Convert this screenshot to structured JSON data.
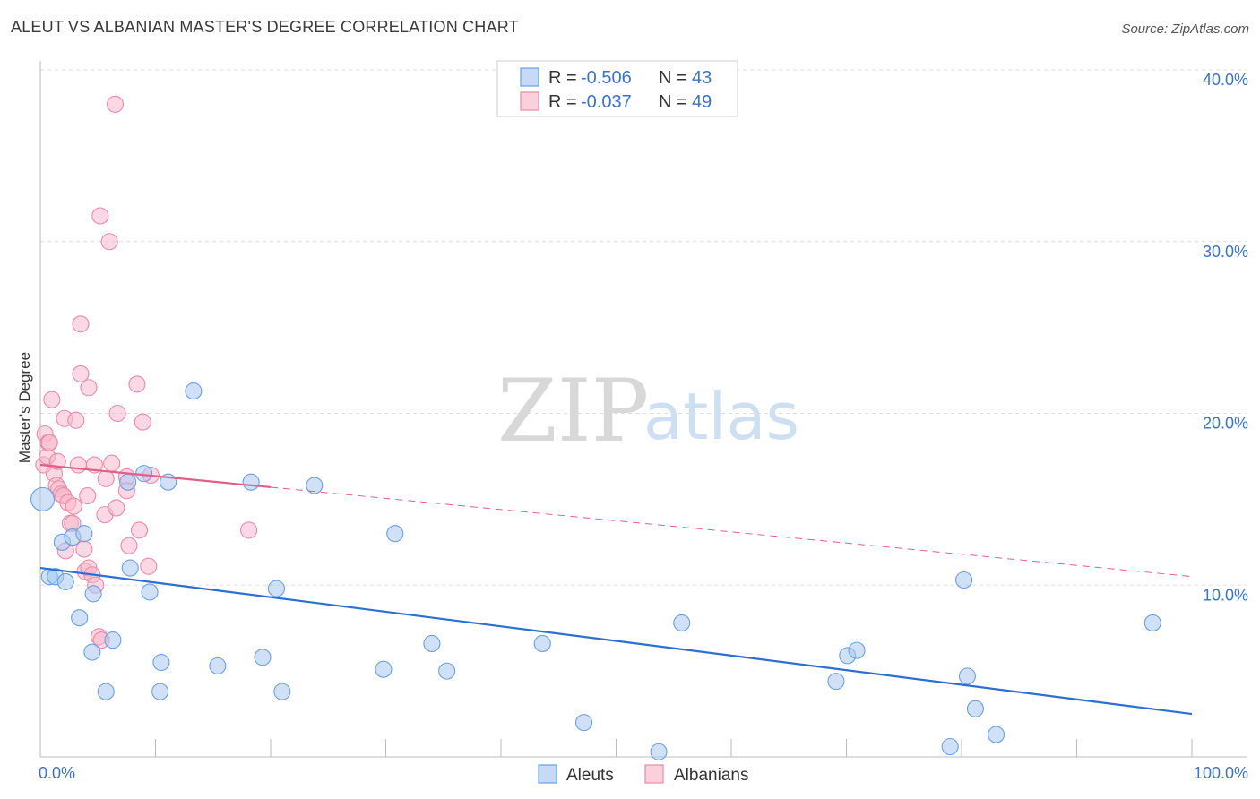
{
  "title": "ALEUT VS ALBANIAN MASTER'S DEGREE CORRELATION CHART",
  "source": "Source: ZipAtlas.com",
  "watermark": {
    "zip": "ZIP",
    "atlas": "atlas"
  },
  "colors": {
    "aleut_fill": "#a9c8f0",
    "aleut_stroke": "#6a9fe0",
    "aleut_line": "#2a6fd1",
    "albanian_fill": "#f7b8cc",
    "albanian_stroke": "#e98aa8",
    "albanian_line": "#e0608a",
    "tick_text": "#3b73c4",
    "grid": "#dddddd"
  },
  "legend": {
    "rows": [
      {
        "r_label": "R = ",
        "r_value": "-0.506",
        "n_label": "N = ",
        "n_value": "43"
      },
      {
        "r_label": "R = ",
        "r_value": "-0.037",
        "n_label": "N = ",
        "n_value": "49"
      }
    ]
  },
  "chart_data": {
    "type": "scatter",
    "title": "ALEUT VS ALBANIAN MASTER'S DEGREE CORRELATION CHART",
    "xlabel": "",
    "ylabel": "Master's Degree",
    "xlim": [
      0,
      100
    ],
    "ylim": [
      0,
      40
    ],
    "x_ticks": [
      {
        "value": 0,
        "label": "0.0%"
      },
      {
        "value": 100,
        "label": "100.0%"
      }
    ],
    "y_ticks": [
      {
        "value": 10,
        "label": "10.0%"
      },
      {
        "value": 20,
        "label": "20.0%"
      },
      {
        "value": 30,
        "label": "30.0%"
      },
      {
        "value": 40,
        "label": "40.0%"
      }
    ],
    "series": [
      {
        "name": "Aleuts",
        "trend": {
          "x0": 0,
          "y0": 11.0,
          "x1": 100,
          "y1": 2.5,
          "dashed_from": null
        },
        "points": [
          {
            "x": 0.2,
            "y": 15.0,
            "big": true
          },
          {
            "x": 0.8,
            "y": 10.5
          },
          {
            "x": 1.3,
            "y": 10.5
          },
          {
            "x": 2.2,
            "y": 10.2
          },
          {
            "x": 1.9,
            "y": 12.5
          },
          {
            "x": 2.8,
            "y": 12.8
          },
          {
            "x": 3.8,
            "y": 13.0
          },
          {
            "x": 3.4,
            "y": 8.1
          },
          {
            "x": 4.6,
            "y": 9.5
          },
          {
            "x": 4.5,
            "y": 6.1
          },
          {
            "x": 5.7,
            "y": 3.8
          },
          {
            "x": 6.3,
            "y": 6.8
          },
          {
            "x": 7.6,
            "y": 16.0
          },
          {
            "x": 7.8,
            "y": 11.0
          },
          {
            "x": 9.0,
            "y": 16.5
          },
          {
            "x": 9.5,
            "y": 9.6
          },
          {
            "x": 10.5,
            "y": 5.5
          },
          {
            "x": 10.4,
            "y": 3.8
          },
          {
            "x": 11.1,
            "y": 16.0
          },
          {
            "x": 13.3,
            "y": 21.3
          },
          {
            "x": 15.4,
            "y": 5.3
          },
          {
            "x": 18.3,
            "y": 16.0
          },
          {
            "x": 19.3,
            "y": 5.8
          },
          {
            "x": 20.5,
            "y": 9.8
          },
          {
            "x": 21.0,
            "y": 3.8
          },
          {
            "x": 23.8,
            "y": 15.8
          },
          {
            "x": 29.8,
            "y": 5.1
          },
          {
            "x": 30.8,
            "y": 13.0
          },
          {
            "x": 34.0,
            "y": 6.6
          },
          {
            "x": 35.3,
            "y": 5.0
          },
          {
            "x": 43.6,
            "y": 6.6
          },
          {
            "x": 47.2,
            "y": 2.0
          },
          {
            "x": 53.7,
            "y": 0.3
          },
          {
            "x": 55.7,
            "y": 7.8
          },
          {
            "x": 69.1,
            "y": 4.4
          },
          {
            "x": 70.1,
            "y": 5.9
          },
          {
            "x": 70.9,
            "y": 6.2
          },
          {
            "x": 79.0,
            "y": 0.6
          },
          {
            "x": 80.2,
            "y": 10.3
          },
          {
            "x": 80.5,
            "y": 4.7
          },
          {
            "x": 81.2,
            "y": 2.8
          },
          {
            "x": 83.0,
            "y": 1.3
          },
          {
            "x": 96.6,
            "y": 7.8
          }
        ]
      },
      {
        "name": "Albanians",
        "trend": {
          "x0": 0,
          "y0": 17.0,
          "x1": 100,
          "y1": 10.5,
          "dashed_from": 20
        },
        "points": [
          {
            "x": 0.3,
            "y": 17.0
          },
          {
            "x": 0.4,
            "y": 18.8
          },
          {
            "x": 0.6,
            "y": 17.5
          },
          {
            "x": 0.7,
            "y": 18.3
          },
          {
            "x": 0.8,
            "y": 18.3
          },
          {
            "x": 1.0,
            "y": 20.8
          },
          {
            "x": 1.2,
            "y": 16.5
          },
          {
            "x": 1.4,
            "y": 15.8
          },
          {
            "x": 1.5,
            "y": 17.2
          },
          {
            "x": 1.6,
            "y": 15.6
          },
          {
            "x": 1.8,
            "y": 15.3
          },
          {
            "x": 2.0,
            "y": 15.2
          },
          {
            "x": 2.1,
            "y": 19.7
          },
          {
            "x": 2.2,
            "y": 12.0
          },
          {
            "x": 2.4,
            "y": 14.8
          },
          {
            "x": 2.6,
            "y": 13.6
          },
          {
            "x": 2.8,
            "y": 13.6
          },
          {
            "x": 2.9,
            "y": 14.6
          },
          {
            "x": 3.1,
            "y": 19.6
          },
          {
            "x": 3.3,
            "y": 17.0
          },
          {
            "x": 3.5,
            "y": 22.3
          },
          {
            "x": 3.5,
            "y": 25.2
          },
          {
            "x": 3.8,
            "y": 12.1
          },
          {
            "x": 3.9,
            "y": 10.8
          },
          {
            "x": 4.2,
            "y": 11.0
          },
          {
            "x": 4.1,
            "y": 15.2
          },
          {
            "x": 4.2,
            "y": 21.5
          },
          {
            "x": 4.5,
            "y": 10.6
          },
          {
            "x": 4.7,
            "y": 17.0
          },
          {
            "x": 4.8,
            "y": 10.0
          },
          {
            "x": 5.1,
            "y": 7.0
          },
          {
            "x": 5.3,
            "y": 6.8
          },
          {
            "x": 5.2,
            "y": 31.5
          },
          {
            "x": 5.6,
            "y": 14.1
          },
          {
            "x": 5.7,
            "y": 16.2
          },
          {
            "x": 6.0,
            "y": 30.0
          },
          {
            "x": 6.2,
            "y": 17.1
          },
          {
            "x": 6.5,
            "y": 38.0
          },
          {
            "x": 6.6,
            "y": 14.5
          },
          {
            "x": 6.7,
            "y": 20.0
          },
          {
            "x": 7.5,
            "y": 16.3
          },
          {
            "x": 7.5,
            "y": 15.5
          },
          {
            "x": 7.7,
            "y": 12.3
          },
          {
            "x": 8.4,
            "y": 21.7
          },
          {
            "x": 8.6,
            "y": 13.2
          },
          {
            "x": 8.9,
            "y": 19.5
          },
          {
            "x": 9.4,
            "y": 11.1
          },
          {
            "x": 18.1,
            "y": 13.2
          },
          {
            "x": 9.6,
            "y": 16.4
          }
        ]
      }
    ],
    "legend_position": "top-center",
    "bottom_legend": [
      "Aleuts",
      "Albanians"
    ]
  }
}
